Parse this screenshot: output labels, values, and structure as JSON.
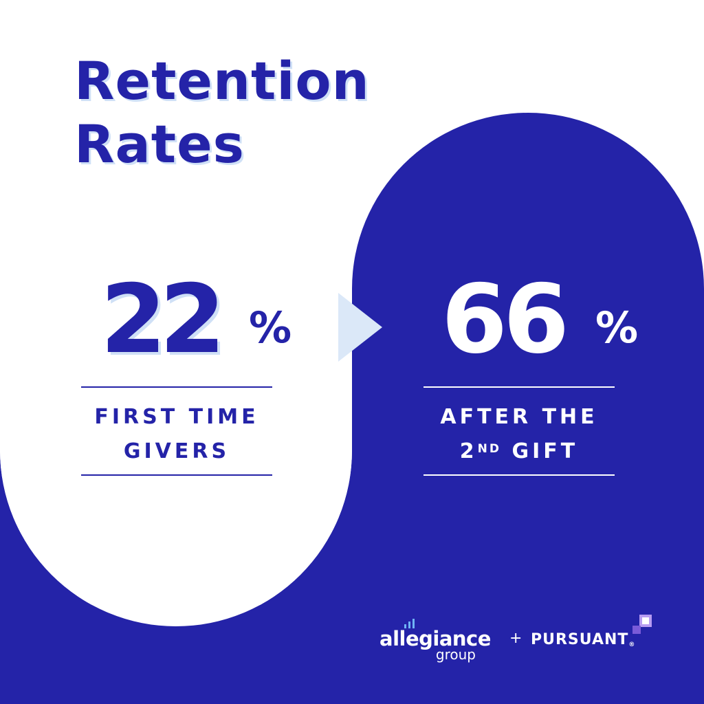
{
  "colors": {
    "brand_blue": "#2423a8",
    "background": "#ffffff",
    "title_shadow": "#cfe0f6",
    "arrow": "#dbe8f8",
    "pursuant_accent_light": "#b79cf2",
    "pursuant_accent_dark": "#7a5bd8",
    "allegiance_bars": "#6fb3f5"
  },
  "title": {
    "line1": "Retention",
    "line2": "Rates"
  },
  "first_time": {
    "value": "22",
    "unit": "%",
    "caption_line1": "FIRST TIME",
    "caption_line2": "GIVERS"
  },
  "second_gift": {
    "value": "66",
    "unit": "%",
    "caption_line1": "AFTER THE",
    "caption_line2_prefix": "2",
    "caption_line2_sup": "ND",
    "caption_line2_suffix": " GIFT"
  },
  "arrow_icon": "play-arrow-icon",
  "footer": {
    "allegiance_word": "allegiance",
    "allegiance_sub": "group",
    "plus": "+",
    "pursuant": "PURSUANT",
    "pursuant_mark": "®"
  }
}
